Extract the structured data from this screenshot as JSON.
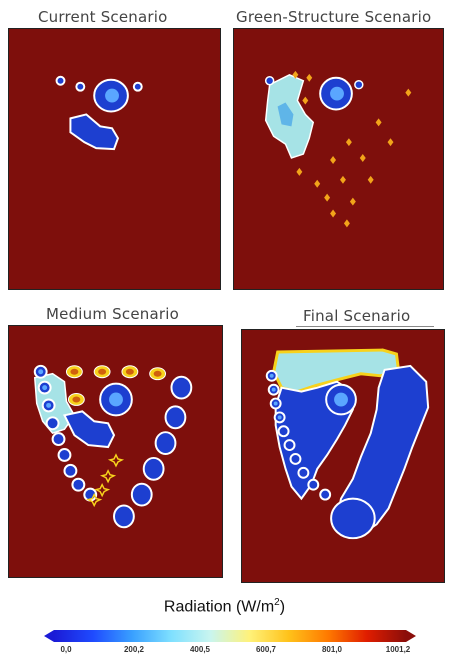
{
  "panels": [
    {
      "title": "Current Scenario"
    },
    {
      "title": "Green-Structure Scenario"
    },
    {
      "title": "Medium Scenario"
    },
    {
      "title": "Final Scenario"
    }
  ],
  "legend": {
    "title": "Radiation (W/m",
    "title_sup": "2",
    "title_end": ")",
    "ticks": [
      "0,0",
      "200,2",
      "400,5",
      "600,7",
      "801,0",
      "1001,2"
    ],
    "colors": [
      "#1b1bd6",
      "#1f4bff",
      "#39a0ff",
      "#7fe0ff",
      "#c9f5ef",
      "#fff27a",
      "#ffc21a",
      "#ff7a00",
      "#e01d00",
      "#8b0e0a"
    ]
  },
  "colors": {
    "background": "#7e0f0c",
    "shade_dark": "#1d3fd0",
    "shade_light": "#a6e3e6",
    "edge": "#ffffff",
    "hot_spot": "#f2a41a"
  }
}
